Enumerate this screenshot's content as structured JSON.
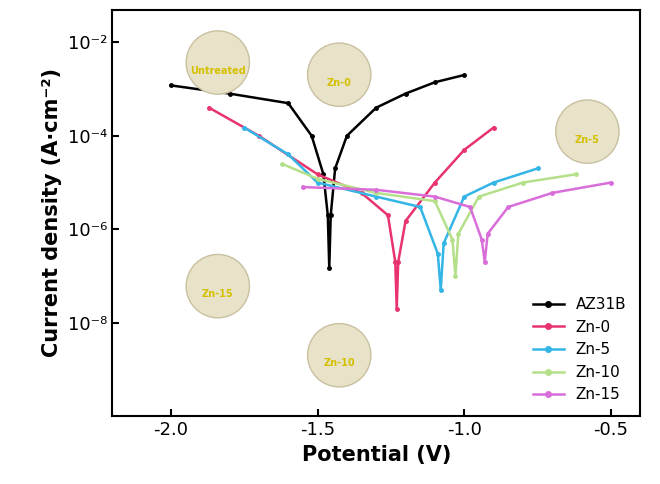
{
  "chart_data": {
    "type": "line",
    "x_label": "Potential (V)",
    "y_label": "Current density (A·cm⁻²)",
    "log": "y",
    "legend": "lower right",
    "marker": "o",
    "xlim": [
      -2.2,
      -0.4
    ],
    "xticks": [
      -2.0,
      -1.5,
      -1.0,
      -0.5
    ],
    "ylim": [
      1e-10,
      0.05
    ],
    "yticks": [
      {
        "value": 1e-08,
        "label": "10⁻⁸"
      },
      {
        "value": 1e-06,
        "label": "10⁻⁶"
      },
      {
        "value": 0.0001,
        "label": "10⁻⁴"
      },
      {
        "value": 0.01,
        "label": "10⁻²"
      }
    ],
    "annotations": [
      "Untreated",
      "Zn-0",
      "Zn-5",
      "Zn-15",
      "Zn-10"
    ],
    "series": [
      {
        "name": "AZ31B",
        "color": "#000000",
        "x": [
          -2.0,
          -1.8,
          -1.6,
          -1.52,
          -1.48,
          -1.465,
          -1.46,
          -1.455,
          -1.44,
          -1.4,
          -1.3,
          -1.2,
          -1.1,
          -1.0
        ],
        "values": [
          0.0012,
          0.0008,
          0.0005,
          0.0001,
          1.5e-05,
          2e-06,
          1.5e-07,
          2e-06,
          2e-05,
          0.0001,
          0.0004,
          0.0008,
          0.0014,
          0.002
        ]
      },
      {
        "name": "Zn-0",
        "color": "#e8336e",
        "x": [
          -1.87,
          -1.7,
          -1.5,
          -1.35,
          -1.26,
          -1.235,
          -1.23,
          -1.225,
          -1.2,
          -1.1,
          -1.0,
          -0.9
        ],
        "values": [
          0.0004,
          0.0001,
          1.5e-05,
          6e-06,
          2e-06,
          2e-07,
          2e-08,
          2e-07,
          1.5e-06,
          1e-05,
          5e-05,
          0.00015
        ]
      },
      {
        "name": "Zn-5",
        "color": "#33b5e5",
        "x": [
          -1.75,
          -1.6,
          -1.5,
          -1.3,
          -1.15,
          -1.09,
          -1.08,
          -1.07,
          -1.0,
          -0.9,
          -0.75
        ],
        "values": [
          0.00015,
          4e-05,
          1e-05,
          5e-06,
          3e-06,
          3e-07,
          5e-08,
          5e-07,
          5e-06,
          1e-05,
          2e-05
        ]
      },
      {
        "name": "Zn-10",
        "color": "#b5e08a",
        "x": [
          -1.62,
          -1.5,
          -1.3,
          -1.1,
          -1.04,
          -1.03,
          -1.02,
          -0.95,
          -0.8,
          -0.62
        ],
        "values": [
          2.5e-05,
          1.2e-05,
          6e-06,
          4e-06,
          6e-07,
          1e-07,
          8e-07,
          5e-06,
          1e-05,
          1.5e-05
        ]
      },
      {
        "name": "Zn-15",
        "color": "#d96dd9",
        "x": [
          -1.55,
          -1.3,
          -1.1,
          -0.98,
          -0.94,
          -0.93,
          -0.92,
          -0.85,
          -0.7,
          -0.5
        ],
        "values": [
          8e-06,
          7e-06,
          5e-06,
          3e-06,
          6e-07,
          2e-07,
          8e-07,
          3e-06,
          6e-06,
          1e-05
        ]
      }
    ]
  }
}
